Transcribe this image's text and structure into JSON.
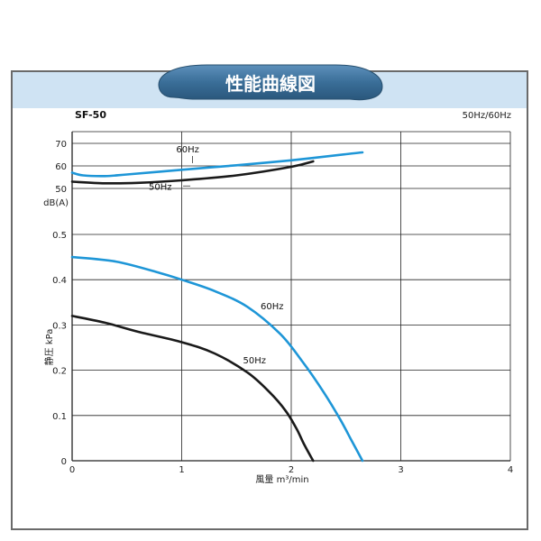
{
  "banner": {
    "title": "性能曲線図",
    "color": "#3a6e98"
  },
  "model": "SF-50",
  "freq_label": "50Hz/60Hz",
  "colors": {
    "hz50": "#1a1a1a",
    "hz60": "#1e96d7",
    "band": "#cfe3f3"
  },
  "chart_data": [
    {
      "type": "line",
      "name": "noise",
      "ylabel": "dB(A)",
      "xlim": [
        0,
        4
      ],
      "yticks": [
        50,
        60,
        70
      ],
      "series": [
        {
          "name": "60Hz",
          "color": "#1e96d7",
          "x": [
            0,
            0.1,
            0.3,
            0.5,
            1.0,
            1.5,
            2.0,
            2.5,
            2.65
          ],
          "y": [
            57,
            55.8,
            55.5,
            56.2,
            58.3,
            60.3,
            62.5,
            65.2,
            66
          ]
        },
        {
          "name": "50Hz",
          "color": "#1a1a1a",
          "x": [
            0,
            0.3,
            0.6,
            1.0,
            1.5,
            2.0,
            2.2
          ],
          "y": [
            53,
            52.3,
            52.5,
            53.6,
            55.8,
            59.6,
            62
          ]
        }
      ]
    },
    {
      "type": "line",
      "name": "pressure",
      "ylabel": "静圧 kPa",
      "xlabel": "風量 m³/min",
      "xlim": [
        0,
        4
      ],
      "ylim": [
        0,
        0.5
      ],
      "xticks": [
        "0",
        "1",
        "2",
        "3",
        "4"
      ],
      "yticks": [
        "0",
        "0.1",
        "0.2",
        "0.3",
        "0.4",
        "0.5"
      ],
      "series": [
        {
          "name": "60Hz",
          "color": "#1e96d7",
          "x": [
            0,
            0.4,
            0.8,
            1.0,
            1.3,
            1.6,
            1.9,
            2.1,
            2.3,
            2.45,
            2.55,
            2.65
          ],
          "y": [
            0.45,
            0.44,
            0.415,
            0.4,
            0.375,
            0.34,
            0.28,
            0.22,
            0.15,
            0.09,
            0.045,
            0
          ]
        },
        {
          "name": "50Hz",
          "color": "#1a1a1a",
          "x": [
            0,
            0.3,
            0.6,
            1.0,
            1.3,
            1.6,
            1.8,
            1.95,
            2.05,
            2.12,
            2.2
          ],
          "y": [
            0.32,
            0.305,
            0.285,
            0.262,
            0.237,
            0.195,
            0.152,
            0.11,
            0.07,
            0.035,
            0
          ]
        }
      ]
    }
  ]
}
